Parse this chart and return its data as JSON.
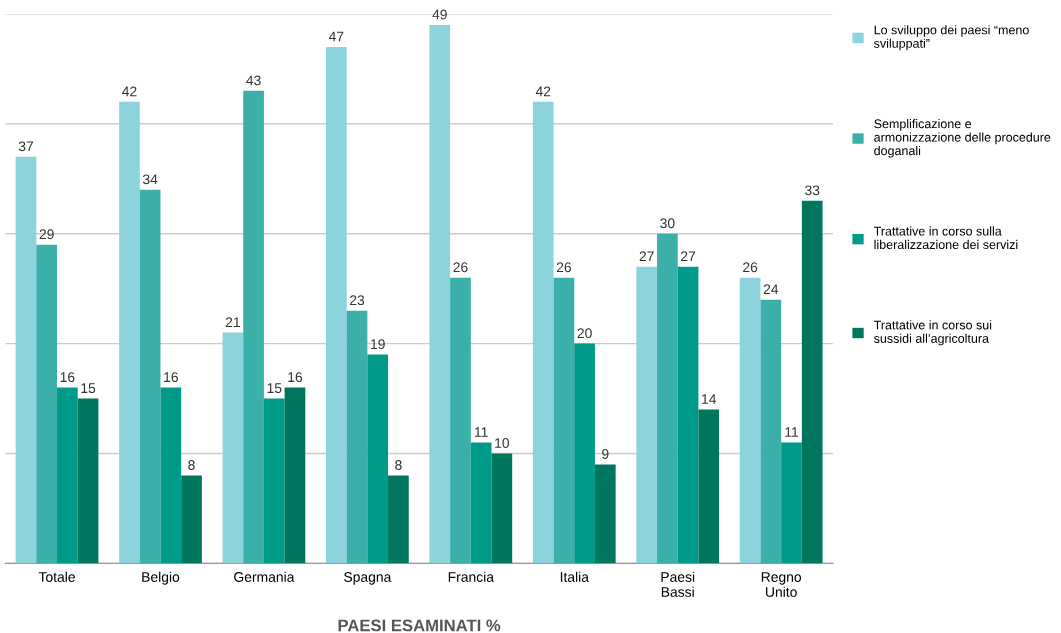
{
  "chart_data": {
    "type": "bar",
    "xlabel": "PAESI ESAMINATI %",
    "categories": [
      "Totale",
      "Belgio",
      "Germania",
      "Spagna",
      "Francia",
      "Italia",
      "Paesi Bassi",
      "Regno Unito"
    ],
    "series": [
      {
        "name": "Lo sviluppo dei paesi “meno sviluppati”",
        "color": "#8dd3dd",
        "values": [
          37,
          42,
          21,
          47,
          49,
          42,
          27,
          26
        ]
      },
      {
        "name": "Semplificazione e armonizzazione delle procedure doganali",
        "color": "#3bb0ab",
        "values": [
          29,
          34,
          43,
          23,
          26,
          26,
          30,
          24
        ]
      },
      {
        "name": "Trattative in corso sulla liberalizzazione dei servizi",
        "color": "#009a8b",
        "values": [
          16,
          16,
          15,
          19,
          11,
          20,
          27,
          11
        ]
      },
      {
        "name": "Trattative in corso sui sussidi all’agricoltura",
        "color": "#00765f",
        "values": [
          15,
          8,
          16,
          8,
          10,
          9,
          14,
          33
        ]
      }
    ],
    "ylim": [
      0,
      50
    ],
    "yticks": [
      {
        "value": 0,
        "label": null
      },
      {
        "value": 10,
        "label": null
      },
      {
        "value": 20,
        "label": null
      },
      {
        "value": 30,
        "label": null
      },
      {
        "value": 40,
        "label": null
      },
      {
        "value": 50,
        "label": null
      }
    ],
    "grid": "y",
    "legend": "right",
    "data_labels": true,
    "tick_labels": "x"
  }
}
